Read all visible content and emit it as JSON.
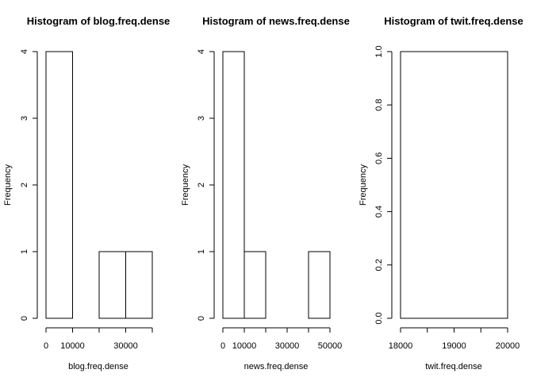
{
  "chart_data": [
    {
      "type": "bar",
      "title": "Histogram of blog.freq.dense",
      "xlabel": "blog.freq.dense",
      "ylabel": "Frequency",
      "bin_edges": [
        0,
        10000,
        20000,
        30000,
        40000
      ],
      "values": [
        4,
        0,
        1,
        1
      ],
      "xlim": [
        0,
        40000
      ],
      "ylim": [
        0,
        4
      ],
      "x_ticks": [
        0,
        10000,
        20000,
        30000,
        40000
      ],
      "x_tick_labels": [
        "0",
        "10000",
        "",
        "30000",
        ""
      ],
      "y_ticks": [
        0,
        1,
        2,
        3,
        4
      ],
      "y_tick_labels": [
        "0",
        "1",
        "2",
        "3",
        "4"
      ],
      "grid": false
    },
    {
      "type": "bar",
      "title": "Histogram of news.freq.dense",
      "xlabel": "news.freq.dense",
      "ylabel": "Frequency",
      "bin_edges": [
        0,
        10000,
        20000,
        30000,
        40000,
        50000
      ],
      "values": [
        4,
        1,
        0,
        0,
        1
      ],
      "xlim": [
        0,
        50000
      ],
      "ylim": [
        0,
        4
      ],
      "x_ticks": [
        0,
        10000,
        20000,
        30000,
        40000,
        50000
      ],
      "x_tick_labels": [
        "0",
        "10000",
        "",
        "30000",
        "",
        "50000"
      ],
      "y_ticks": [
        0,
        1,
        2,
        3,
        4
      ],
      "y_tick_labels": [
        "0",
        "1",
        "2",
        "3",
        "4"
      ],
      "grid": false
    },
    {
      "type": "bar",
      "title": "Histogram of twit.freq.dense",
      "xlabel": "twit.freq.dense",
      "ylabel": "Frequency",
      "bin_edges": [
        18000,
        20000
      ],
      "values": [
        1
      ],
      "xlim": [
        18000,
        20000
      ],
      "ylim": [
        0,
        1
      ],
      "x_ticks": [
        18000,
        18500,
        19000,
        19500,
        20000
      ],
      "x_tick_labels": [
        "18000",
        "",
        "19000",
        "",
        "20000"
      ],
      "y_ticks": [
        0,
        0.2,
        0.4,
        0.6,
        0.8,
        1
      ],
      "y_tick_labels": [
        "0.0",
        "0.2",
        "0.4",
        "0.6",
        "0.8",
        "1.0"
      ],
      "grid": false
    }
  ]
}
